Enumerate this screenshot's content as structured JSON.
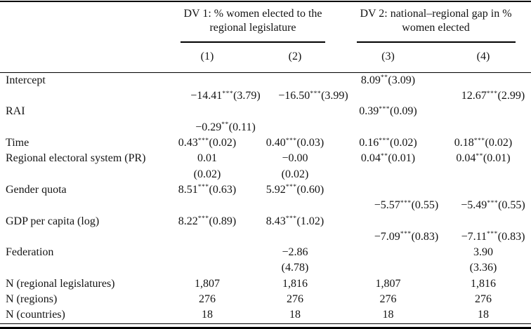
{
  "colors": {
    "background": "#ffffff",
    "text": "#141414",
    "rule": "#000000"
  },
  "table": {
    "groups": [
      {
        "title": "DV 1: % women elected to the regional legislature",
        "cols": [
          "(1)",
          "(2)"
        ]
      },
      {
        "title": "DV 2: national–regional gap in % women elected",
        "cols": [
          "(3)",
          "(4)"
        ]
      }
    ],
    "rows": [
      {
        "label": "Intercept",
        "lines": [
          {
            "shift": false,
            "cells": [
              "",
              "",
              {
                "v": "8.09",
                "s": "**",
                "p": "(3.09)"
              },
              ""
            ]
          },
          {
            "shift": true,
            "cells": [
              {
                "v": "−14.41",
                "s": "***",
                "p": "(3.79)"
              },
              {
                "v": "−16.50",
                "s": "***",
                "p": "(3.99)"
              },
              "",
              {
                "v": "12.67",
                "s": "***",
                "p": "(2.99)"
              }
            ]
          }
        ]
      },
      {
        "label": "RAI",
        "lines": [
          {
            "shift": false,
            "cells": [
              "",
              "",
              {
                "v": "0.39",
                "s": "***",
                "p": "(0.09)"
              },
              ""
            ]
          },
          {
            "shift": true,
            "cells": [
              {
                "v": "−0.29",
                "s": "**",
                "p": "(0.11)"
              },
              "",
              "",
              ""
            ]
          }
        ]
      },
      {
        "label": "Time",
        "lines": [
          {
            "shift": false,
            "cells": [
              {
                "v": "0.43",
                "s": "***",
                "p": "(0.02)"
              },
              {
                "v": "0.40",
                "s": "***",
                "p": "(0.03)"
              },
              {
                "v": "0.16",
                "s": "***",
                "p": "(0.02)"
              },
              {
                "v": "0.18",
                "s": "***",
                "p": "(0.02)"
              }
            ]
          }
        ]
      },
      {
        "label": "Regional electoral system (PR)",
        "lines": [
          {
            "shift": false,
            "cells": [
              {
                "v": "0.01"
              },
              {
                "v": "−0.00"
              },
              {
                "v": "0.04",
                "s": "**",
                "p": "(0.01)"
              },
              {
                "v": "0.04",
                "s": "**",
                "p": "(0.01)"
              }
            ]
          },
          {
            "shift": false,
            "cells": [
              {
                "v": "(0.02)"
              },
              {
                "v": "(0.02)"
              },
              "",
              ""
            ]
          }
        ]
      },
      {
        "label": "Gender quota",
        "lines": [
          {
            "shift": false,
            "cells": [
              {
                "v": "8.51",
                "s": "***",
                "p": "(0.63)"
              },
              {
                "v": "5.92",
                "s": "***",
                "p": "(0.60)"
              },
              "",
              ""
            ]
          },
          {
            "shift": true,
            "cells": [
              "",
              "",
              {
                "v": "−5.57",
                "s": "***",
                "p": "(0.55)"
              },
              {
                "v": "−5.49",
                "s": "***",
                "p": "(0.55)"
              }
            ]
          }
        ]
      },
      {
        "label": "GDP per capita (log)",
        "lines": [
          {
            "shift": false,
            "cells": [
              {
                "v": "8.22",
                "s": "***",
                "p": "(0.89)"
              },
              {
                "v": "8.43",
                "s": "***",
                "p": "(1.02)"
              },
              "",
              ""
            ]
          },
          {
            "shift": true,
            "cells": [
              "",
              "",
              {
                "v": "−7.09",
                "s": "***",
                "p": "(0.83)"
              },
              {
                "v": "−7.11",
                "s": "***",
                "p": "(0.83)"
              }
            ]
          }
        ]
      },
      {
        "label": "Federation",
        "lines": [
          {
            "shift": false,
            "cells": [
              "",
              {
                "v": "−2.86"
              },
              "",
              {
                "v": "3.90"
              }
            ]
          },
          {
            "shift": false,
            "cells": [
              "",
              {
                "v": "(4.78)"
              },
              "",
              {
                "v": "(3.36)"
              }
            ]
          }
        ]
      },
      {
        "label": "N (regional legislatures)",
        "lines": [
          {
            "shift": false,
            "cells": [
              {
                "v": "1,807"
              },
              {
                "v": "1,816"
              },
              {
                "v": "1,807"
              },
              {
                "v": "1,816"
              }
            ]
          }
        ]
      },
      {
        "label": "N (regions)",
        "lines": [
          {
            "shift": false,
            "cells": [
              {
                "v": "276"
              },
              {
                "v": "276"
              },
              {
                "v": "276"
              },
              {
                "v": "276"
              }
            ]
          }
        ]
      },
      {
        "label": "N (countries)",
        "lines": [
          {
            "shift": false,
            "cells": [
              {
                "v": "18"
              },
              {
                "v": "18"
              },
              {
                "v": "18"
              },
              {
                "v": "18"
              }
            ]
          }
        ]
      }
    ]
  }
}
